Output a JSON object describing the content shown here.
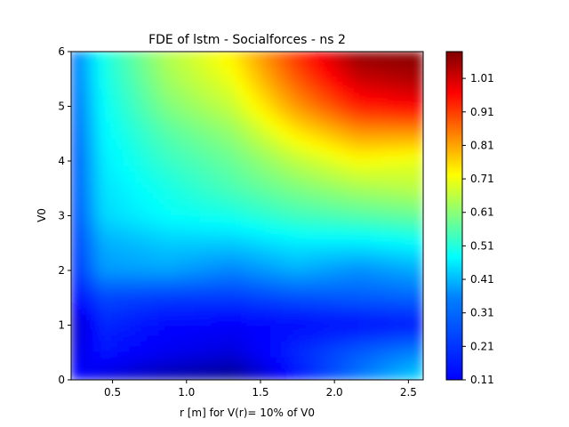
{
  "chart_data": {
    "type": "heatmap",
    "title": "FDE of lstm - Socialforces - ns 2",
    "xlabel": "r [m] for V(r)= 10% of V0",
    "ylabel": "V0",
    "xlim": [
      0.22,
      2.6
    ],
    "ylim": [
      0,
      6
    ],
    "xticks": [
      "0.5",
      "1.0",
      "1.5",
      "2.0",
      "2.5"
    ],
    "xtick_values": [
      0.5,
      1.0,
      1.5,
      2.0,
      2.5
    ],
    "yticks": [
      "0",
      "1",
      "2",
      "3",
      "4",
      "5",
      "6"
    ],
    "ytick_values": [
      0,
      1,
      2,
      3,
      4,
      5,
      6
    ],
    "colorbar": {
      "range": [
        0.11,
        1.09
      ],
      "ticks": [
        "0.11",
        "0.21",
        "0.31",
        "0.41",
        "0.51",
        "0.61",
        "0.71",
        "0.81",
        "0.91",
        "1.01"
      ],
      "tick_values": [
        0.11,
        0.21,
        0.31,
        0.41,
        0.51,
        0.61,
        0.71,
        0.81,
        0.91,
        1.01
      ],
      "colormap": "jet"
    },
    "x": [
      0.22,
      0.44,
      0.87,
      1.31,
      1.74,
      2.17,
      2.6
    ],
    "y": [
      0,
      0.5,
      1.0,
      1.5,
      2.0,
      2.5,
      3.0,
      3.5,
      4.0,
      4.5,
      5.0,
      5.5,
      6.0
    ],
    "z": [
      [
        0.25,
        0.2,
        0.15,
        0.12,
        0.25,
        0.35,
        0.45
      ],
      [
        0.2,
        0.25,
        0.22,
        0.2,
        0.27,
        0.32,
        0.36
      ],
      [
        0.17,
        0.27,
        0.24,
        0.23,
        0.24,
        0.25,
        0.26
      ],
      [
        0.24,
        0.3,
        0.29,
        0.29,
        0.31,
        0.32,
        0.33
      ],
      [
        0.27,
        0.38,
        0.39,
        0.36,
        0.4,
        0.37,
        0.4
      ],
      [
        0.28,
        0.4,
        0.43,
        0.43,
        0.46,
        0.46,
        0.48
      ],
      [
        0.29,
        0.44,
        0.48,
        0.5,
        0.54,
        0.56,
        0.58
      ],
      [
        0.3,
        0.45,
        0.5,
        0.55,
        0.6,
        0.64,
        0.66
      ],
      [
        0.3,
        0.46,
        0.53,
        0.58,
        0.66,
        0.72,
        0.7
      ],
      [
        0.31,
        0.47,
        0.56,
        0.62,
        0.74,
        0.82,
        0.82
      ],
      [
        0.32,
        0.48,
        0.6,
        0.67,
        0.82,
        0.94,
        0.97
      ],
      [
        0.33,
        0.49,
        0.63,
        0.71,
        0.88,
        1.02,
        1.05
      ],
      [
        0.33,
        0.5,
        0.65,
        0.74,
        0.92,
        1.08,
        1.09
      ]
    ]
  }
}
